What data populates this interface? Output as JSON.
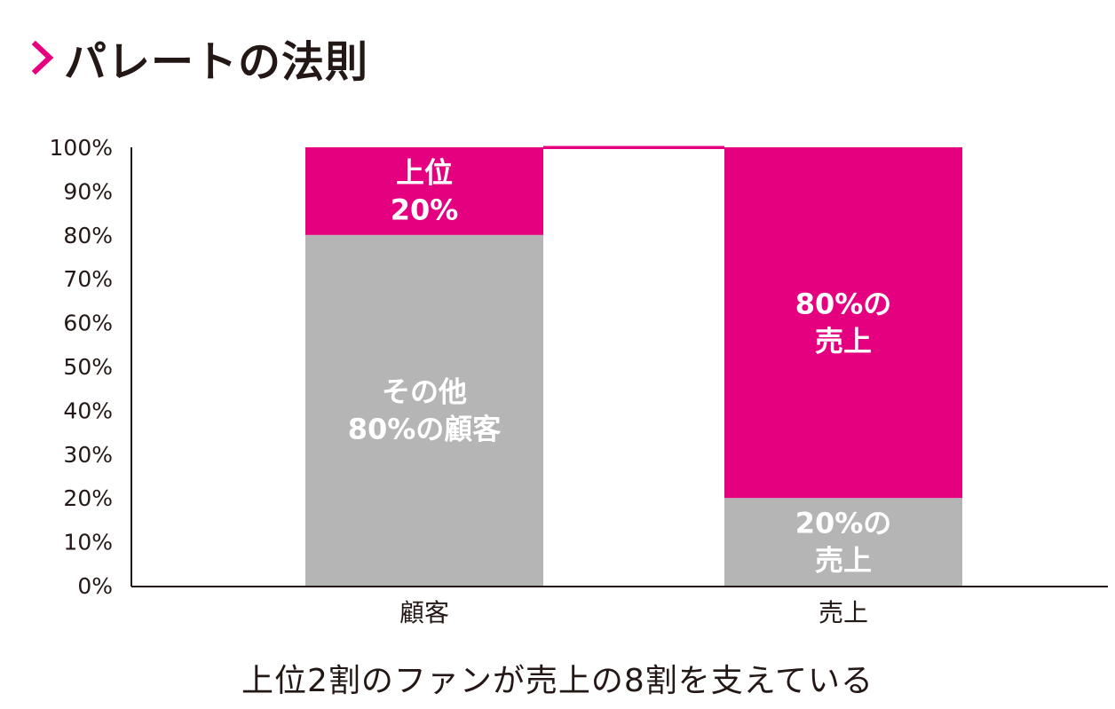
{
  "title": "パレートの法則",
  "caption": "上位2割のファンが売上の8割を支えている",
  "colors": {
    "accent": "#e4007f",
    "gray": "#b5b5b6",
    "text": "#231815",
    "axis": "#231815"
  },
  "chart_data": {
    "type": "bar",
    "stacked": true,
    "categories": [
      "顧客",
      "売上"
    ],
    "series": [
      {
        "values": [
          80,
          20
        ],
        "color": "#b5b5b6",
        "labels": [
          "その他\n80%の顧客",
          "20%の\n売上"
        ]
      },
      {
        "values": [
          20,
          80
        ],
        "color": "#e4007f",
        "labels": [
          "上位\n20%",
          "80%の\n売上"
        ]
      }
    ],
    "ylim": [
      0,
      100
    ],
    "yticks": [
      "0%",
      "10%",
      "20%",
      "30%",
      "40%",
      "50%",
      "60%",
      "70%",
      "80%",
      "90%",
      "100%"
    ],
    "connector_lines": true
  }
}
